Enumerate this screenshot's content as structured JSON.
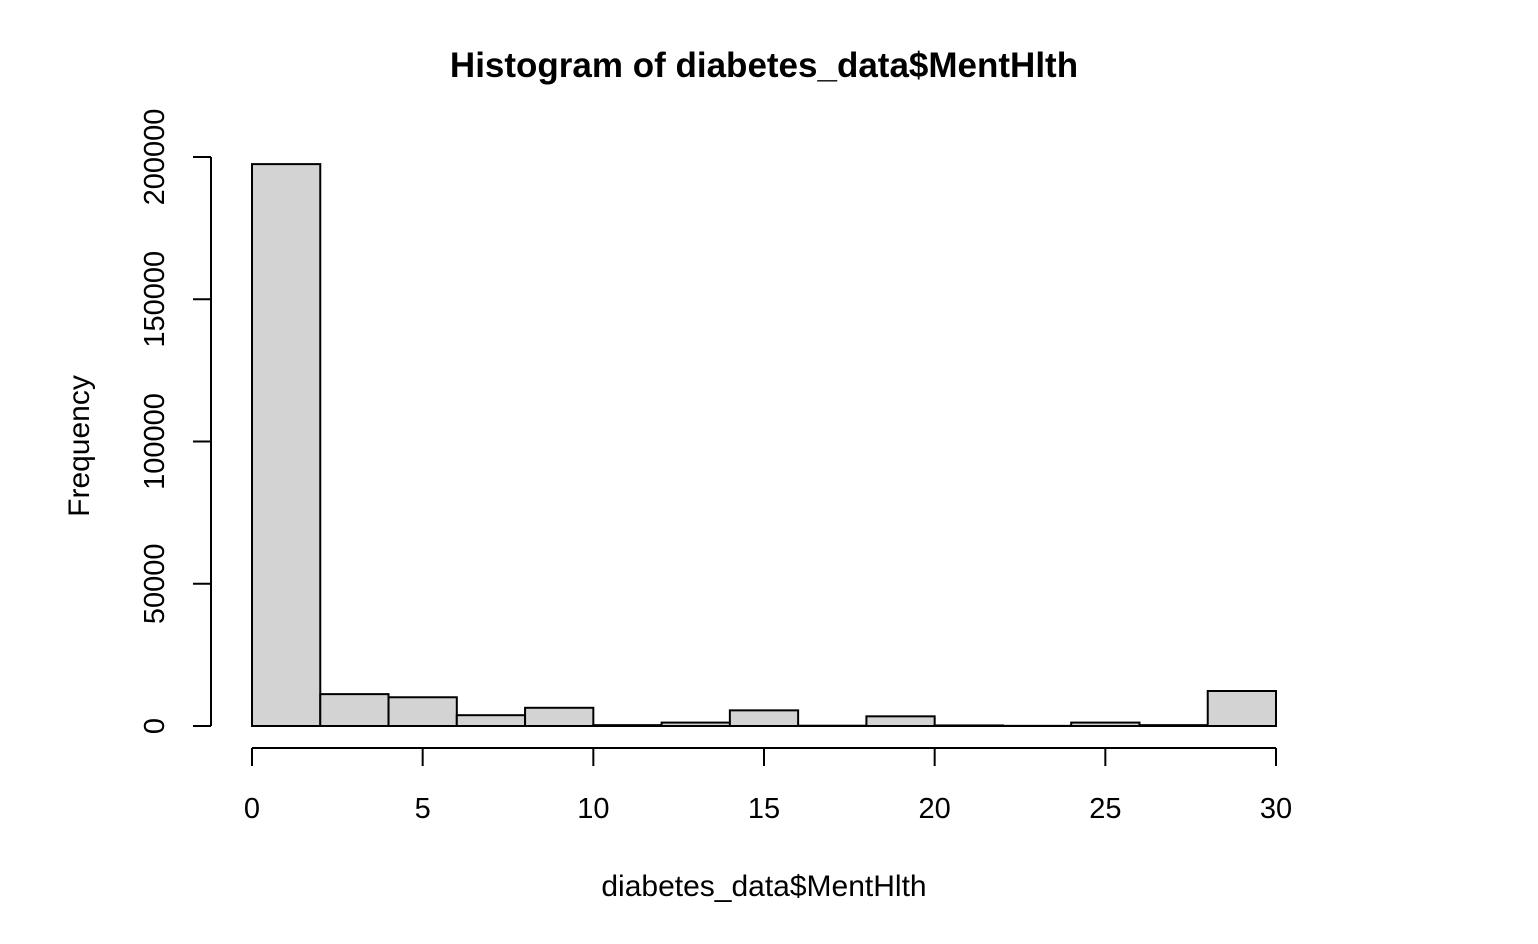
{
  "chart_data": {
    "type": "bar",
    "title": "Histogram of diabetes_data$MentHlth",
    "xlabel": "diabetes_data$MentHlth",
    "ylabel": "Frequency",
    "bin_edges": [
      0,
      2,
      4,
      6,
      8,
      10,
      12,
      14,
      16,
      18,
      20,
      22,
      24,
      26,
      28,
      30
    ],
    "values": [
      197500,
      11200,
      10100,
      3800,
      6400,
      300,
      1200,
      5500,
      100,
      3400,
      200,
      50,
      1200,
      300,
      12300
    ],
    "xlim": [
      0,
      30
    ],
    "ylim": [
      0,
      200000
    ],
    "x_ticks": [
      0,
      5,
      10,
      15,
      20,
      25,
      30
    ],
    "x_tick_labels": [
      "0",
      "5",
      "10",
      "15",
      "20",
      "25",
      "30"
    ],
    "y_ticks": [
      0,
      50000,
      100000,
      150000,
      200000
    ],
    "y_tick_labels": [
      "0",
      "50000",
      "100000",
      "150000",
      "200000"
    ],
    "bar_fill": "#d3d3d3",
    "bar_stroke": "#000000",
    "grid": false,
    "legend": "none"
  }
}
